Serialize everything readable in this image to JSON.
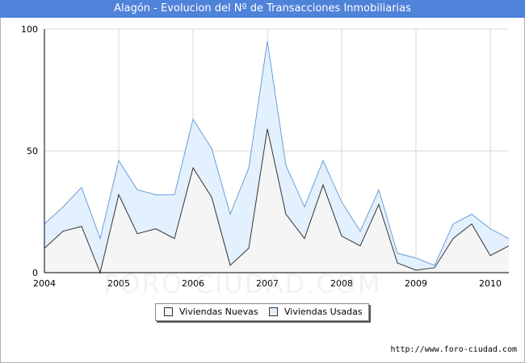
{
  "title": "Alagón - Evolucion del Nº de Transacciones Inmobiliarias",
  "source_url": "http://www.foro-ciudad.com",
  "watermark": "FORO-CIUDAD.COM",
  "colors": {
    "title_bg": "#4f82d9",
    "nuevas_fill": "#f5f5f5",
    "usadas_fill": "#e3f0fd",
    "nuevas_line": "#333333",
    "usadas_line": "#6a9fd8"
  },
  "chart_data": {
    "type": "area",
    "title": "Alagón - Evolucion del Nº de Transacciones Inmobiliarias",
    "x_tick_labels": [
      "2004",
      "2005",
      "2006",
      "2007",
      "2008",
      "2009",
      "2010"
    ],
    "y_ticks": [
      0,
      50,
      100
    ],
    "ylim": [
      0,
      100
    ],
    "xlim": [
      2004.0,
      2010.25
    ],
    "grid": true,
    "legend_position": "bottom",
    "x": [
      2004.0,
      2004.25,
      2004.5,
      2004.75,
      2005.0,
      2005.25,
      2005.5,
      2005.75,
      2006.0,
      2006.25,
      2006.5,
      2006.75,
      2007.0,
      2007.25,
      2007.5,
      2007.75,
      2008.0,
      2008.25,
      2008.5,
      2008.75,
      2009.0,
      2009.25,
      2009.5,
      2009.75,
      2010.0,
      2010.25
    ],
    "series": [
      {
        "name": "Viviendas Nuevas",
        "total": [
          10,
          17,
          19,
          0,
          32,
          16,
          18,
          14,
          43,
          31,
          3,
          10,
          59,
          24,
          14,
          36,
          15,
          11,
          28,
          4,
          1,
          2,
          14,
          20,
          7,
          11
        ]
      },
      {
        "name": "Viviendas Usadas",
        "total": [
          20,
          27,
          35,
          14,
          46,
          34,
          32,
          32,
          63,
          51,
          24,
          43,
          95,
          44,
          27,
          46,
          29,
          17,
          34,
          8,
          6,
          3,
          20,
          24,
          18,
          14
        ]
      }
    ]
  }
}
